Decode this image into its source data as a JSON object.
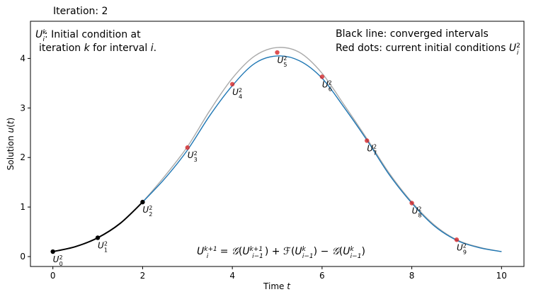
{
  "chart_data": {
    "type": "line",
    "iteration_title": "Iteration:  2",
    "xlabel": "Time t",
    "ylabel": "Solution u(t)",
    "xlim": [
      -0.5,
      10.5
    ],
    "ylim": [
      -0.2,
      4.75
    ],
    "xticks": [
      0,
      2,
      4,
      6,
      8,
      10
    ],
    "yticks": [
      0,
      1,
      2,
      3,
      4
    ],
    "annotation_left_line1": "U_i^k: Initial condition at",
    "annotation_left_line2": "iteration k for interval i.",
    "annotation_right_line1": "Black line: converged intervals",
    "annotation_right_line2": "Red dots: current initial conditions U_i^2",
    "formula": "U_i^{k+1} = G(U_{i-1}^{k+1}) + F(U_{i-1}^k) − G(U_{i-1}^k)",
    "colors": {
      "converged": "#000000",
      "fine": "#1f77b4",
      "coarse": "#aaaaaa",
      "red_dot": "#d62728"
    },
    "series": [
      {
        "name": "converged",
        "x": [
          0,
          0.5,
          1,
          1.5,
          2
        ],
        "y": [
          0.1,
          0.2,
          0.38,
          0.67,
          1.1
        ]
      },
      {
        "name": "fine",
        "x": [
          2,
          2.5,
          3,
          3.5,
          4,
          4.5,
          5,
          5.5,
          6,
          6.5,
          7,
          7.5,
          8,
          8.5,
          9,
          9.5,
          10
        ],
        "y": [
          1.1,
          1.58,
          2.15,
          2.85,
          3.45,
          3.9,
          4.05,
          3.95,
          3.6,
          3.0,
          2.35,
          1.65,
          1.08,
          0.62,
          0.33,
          0.18,
          0.1
        ]
      },
      {
        "name": "coarse",
        "x": [
          2,
          2.5,
          3,
          3.5,
          4,
          4.5,
          5,
          5.5,
          6,
          6.5,
          7,
          7.5,
          8,
          8.5,
          9,
          9.5,
          10
        ],
        "y": [
          1.1,
          1.63,
          2.22,
          2.95,
          3.6,
          4.05,
          4.22,
          4.12,
          3.7,
          3.05,
          2.38,
          1.68,
          1.1,
          0.64,
          0.34,
          0.19,
          0.1
        ]
      }
    ],
    "points": [
      {
        "label": "U",
        "sub": "0",
        "sup": "2",
        "x": 0,
        "y": 0.1,
        "converged": true
      },
      {
        "label": "U",
        "sub": "1",
        "sup": "2",
        "x": 1,
        "y": 0.38,
        "converged": true
      },
      {
        "label": "U",
        "sub": "2",
        "sup": "2",
        "x": 2,
        "y": 1.1,
        "converged": true
      },
      {
        "label": "U",
        "sub": "3",
        "sup": "2",
        "x": 3,
        "y": 2.2,
        "converged": false
      },
      {
        "label": "U",
        "sub": "4",
        "sup": "2",
        "x": 4,
        "y": 3.48,
        "converged": false
      },
      {
        "label": "U",
        "sub": "5",
        "sup": "2",
        "x": 5,
        "y": 4.12,
        "converged": false
      },
      {
        "label": "U",
        "sub": "6",
        "sup": "2",
        "x": 6,
        "y": 3.63,
        "converged": false
      },
      {
        "label": "U",
        "sub": "7",
        "sup": "2",
        "x": 7,
        "y": 2.34,
        "converged": false
      },
      {
        "label": "U",
        "sub": "8",
        "sup": "2",
        "x": 8,
        "y": 1.08,
        "converged": false
      },
      {
        "label": "U",
        "sub": "9",
        "sup": "2",
        "x": 9,
        "y": 0.34,
        "converged": false
      }
    ]
  }
}
